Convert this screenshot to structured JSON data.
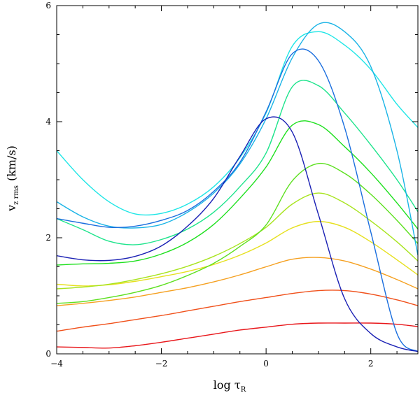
{
  "chart_data": {
    "type": "line",
    "title": "",
    "xlabel": "log τ",
    "xlabel_sub": "R",
    "ylabel_main": "v",
    "ylabel_sub": "z rms",
    "ylabel_units": "(km/s)",
    "xlim": [
      -4,
      2.9
    ],
    "ylim": [
      0,
      6
    ],
    "xticks": [
      -4,
      -2,
      0,
      2
    ],
    "yticks": [
      0,
      2,
      4,
      6
    ],
    "xtick_labels": [
      "−4",
      "−2",
      "0",
      "2"
    ],
    "ytick_labels": [
      "0",
      "2",
      "4",
      "6"
    ],
    "grid": false,
    "series": [
      {
        "name": "red",
        "color": "#e8161a",
        "x": [
          -4.0,
          -3.5,
          -3.0,
          -2.5,
          -2.0,
          -1.5,
          -1.0,
          -0.5,
          0.0,
          0.5,
          1.0,
          1.5,
          2.0,
          2.5,
          2.9
        ],
        "y": [
          0.12,
          0.11,
          0.1,
          0.14,
          0.2,
          0.27,
          0.34,
          0.41,
          0.46,
          0.51,
          0.53,
          0.53,
          0.53,
          0.51,
          0.47
        ]
      },
      {
        "name": "orange-red",
        "color": "#f0501a",
        "x": [
          -4.0,
          -3.5,
          -3.0,
          -2.5,
          -2.0,
          -1.5,
          -1.0,
          -0.5,
          0.0,
          0.5,
          1.0,
          1.5,
          2.0,
          2.5,
          2.9
        ],
        "y": [
          0.39,
          0.46,
          0.52,
          0.59,
          0.66,
          0.74,
          0.82,
          0.9,
          0.97,
          1.04,
          1.09,
          1.09,
          1.03,
          0.93,
          0.83
        ]
      },
      {
        "name": "orange",
        "color": "#f5a020",
        "x": [
          -4.0,
          -3.5,
          -3.0,
          -2.5,
          -2.0,
          -1.5,
          -1.0,
          -0.5,
          0.0,
          0.5,
          1.0,
          1.5,
          2.0,
          2.5,
          2.9
        ],
        "y": [
          0.83,
          0.87,
          0.92,
          0.98,
          1.06,
          1.14,
          1.24,
          1.36,
          1.5,
          1.63,
          1.66,
          1.6,
          1.46,
          1.28,
          1.12
        ]
      },
      {
        "name": "yellow",
        "color": "#e6e01e",
        "x": [
          -4.0,
          -3.5,
          -3.0,
          -2.5,
          -2.0,
          -1.5,
          -1.0,
          -0.5,
          0.0,
          0.5,
          1.0,
          1.5,
          2.0,
          2.5,
          2.9
        ],
        "y": [
          1.2,
          1.17,
          1.19,
          1.25,
          1.33,
          1.42,
          1.54,
          1.7,
          1.91,
          2.17,
          2.28,
          2.18,
          1.93,
          1.62,
          1.36
        ]
      },
      {
        "name": "yellow-green",
        "color": "#a8e41e",
        "x": [
          -4.0,
          -3.5,
          -3.0,
          -2.5,
          -2.0,
          -1.5,
          -1.0,
          -0.5,
          0.0,
          0.5,
          1.0,
          1.5,
          2.0,
          2.5,
          2.9
        ],
        "y": [
          1.12,
          1.15,
          1.2,
          1.28,
          1.38,
          1.51,
          1.68,
          1.9,
          2.18,
          2.58,
          2.77,
          2.6,
          2.29,
          1.93,
          1.6
        ]
      },
      {
        "name": "lime",
        "color": "#5ce01e",
        "x": [
          -4.0,
          -3.5,
          -3.0,
          -2.5,
          -2.0,
          -1.5,
          -1.0,
          -0.5,
          0.0,
          0.5,
          1.0,
          1.5,
          2.0,
          2.5,
          2.9
        ],
        "y": [
          0.87,
          0.9,
          0.97,
          1.06,
          1.18,
          1.35,
          1.56,
          1.85,
          2.22,
          2.98,
          3.28,
          3.11,
          2.75,
          2.3,
          1.9
        ]
      },
      {
        "name": "green",
        "color": "#1ee01e",
        "x": [
          -4.0,
          -3.5,
          -3.0,
          -2.5,
          -2.0,
          -1.5,
          -1.0,
          -0.5,
          0.0,
          0.5,
          1.0,
          1.5,
          2.0,
          2.5,
          2.9
        ],
        "y": [
          1.53,
          1.55,
          1.56,
          1.6,
          1.72,
          1.92,
          2.23,
          2.68,
          3.22,
          3.94,
          3.95,
          3.57,
          3.12,
          2.6,
          2.15
        ]
      },
      {
        "name": "spring-green",
        "color": "#1ee48c",
        "x": [
          -4.0,
          -3.5,
          -3.0,
          -2.5,
          -2.0,
          -1.5,
          -1.0,
          -0.5,
          0.0,
          0.5,
          1.0,
          1.5,
          2.0,
          2.5,
          2.9
        ],
        "y": [
          2.33,
          2.14,
          1.94,
          1.88,
          1.97,
          2.15,
          2.44,
          2.88,
          3.46,
          4.6,
          4.62,
          4.15,
          3.6,
          3.0,
          2.45
        ]
      },
      {
        "name": "cyan",
        "color": "#1ee6e6",
        "x": [
          -4.0,
          -3.5,
          -3.0,
          -2.5,
          -2.0,
          -1.5,
          -1.0,
          -0.5,
          0.0,
          0.5,
          1.0,
          1.5,
          2.0,
          2.5,
          2.9
        ],
        "y": [
          3.5,
          3.0,
          2.62,
          2.41,
          2.42,
          2.58,
          2.88,
          3.38,
          4.15,
          5.3,
          5.55,
          5.32,
          4.9,
          4.3,
          3.9
        ]
      },
      {
        "name": "sky-blue",
        "color": "#1ab4e6",
        "x": [
          -4.0,
          -3.5,
          -3.0,
          -2.5,
          -2.0,
          -1.5,
          -1.0,
          -0.5,
          0.0,
          0.5,
          1.0,
          1.5,
          2.0,
          2.5,
          2.9
        ],
        "y": [
          2.62,
          2.36,
          2.2,
          2.17,
          2.23,
          2.44,
          2.77,
          3.27,
          4.05,
          5.1,
          5.68,
          5.55,
          4.95,
          3.5,
          1.7
        ]
      },
      {
        "name": "blue",
        "color": "#1a6ede",
        "x": [
          -4.0,
          -3.5,
          -3.0,
          -2.5,
          -2.0,
          -1.5,
          -1.0,
          -0.5,
          0.0,
          0.5,
          1.0,
          1.5,
          2.0,
          2.5,
          2.9
        ],
        "y": [
          2.33,
          2.25,
          2.18,
          2.2,
          2.3,
          2.47,
          2.8,
          3.3,
          4.17,
          5.17,
          5.05,
          3.9,
          2.1,
          0.35,
          0.04
        ]
      },
      {
        "name": "navy",
        "color": "#1a20b4",
        "x": [
          -4.0,
          -3.5,
          -3.0,
          -2.5,
          -2.0,
          -1.5,
          -1.0,
          -0.5,
          0.0,
          0.5,
          1.0,
          1.5,
          2.0,
          2.5,
          2.9
        ],
        "y": [
          1.69,
          1.62,
          1.61,
          1.68,
          1.86,
          2.2,
          2.68,
          3.4,
          4.05,
          3.82,
          2.4,
          0.95,
          0.35,
          0.12,
          0.04
        ]
      }
    ]
  }
}
